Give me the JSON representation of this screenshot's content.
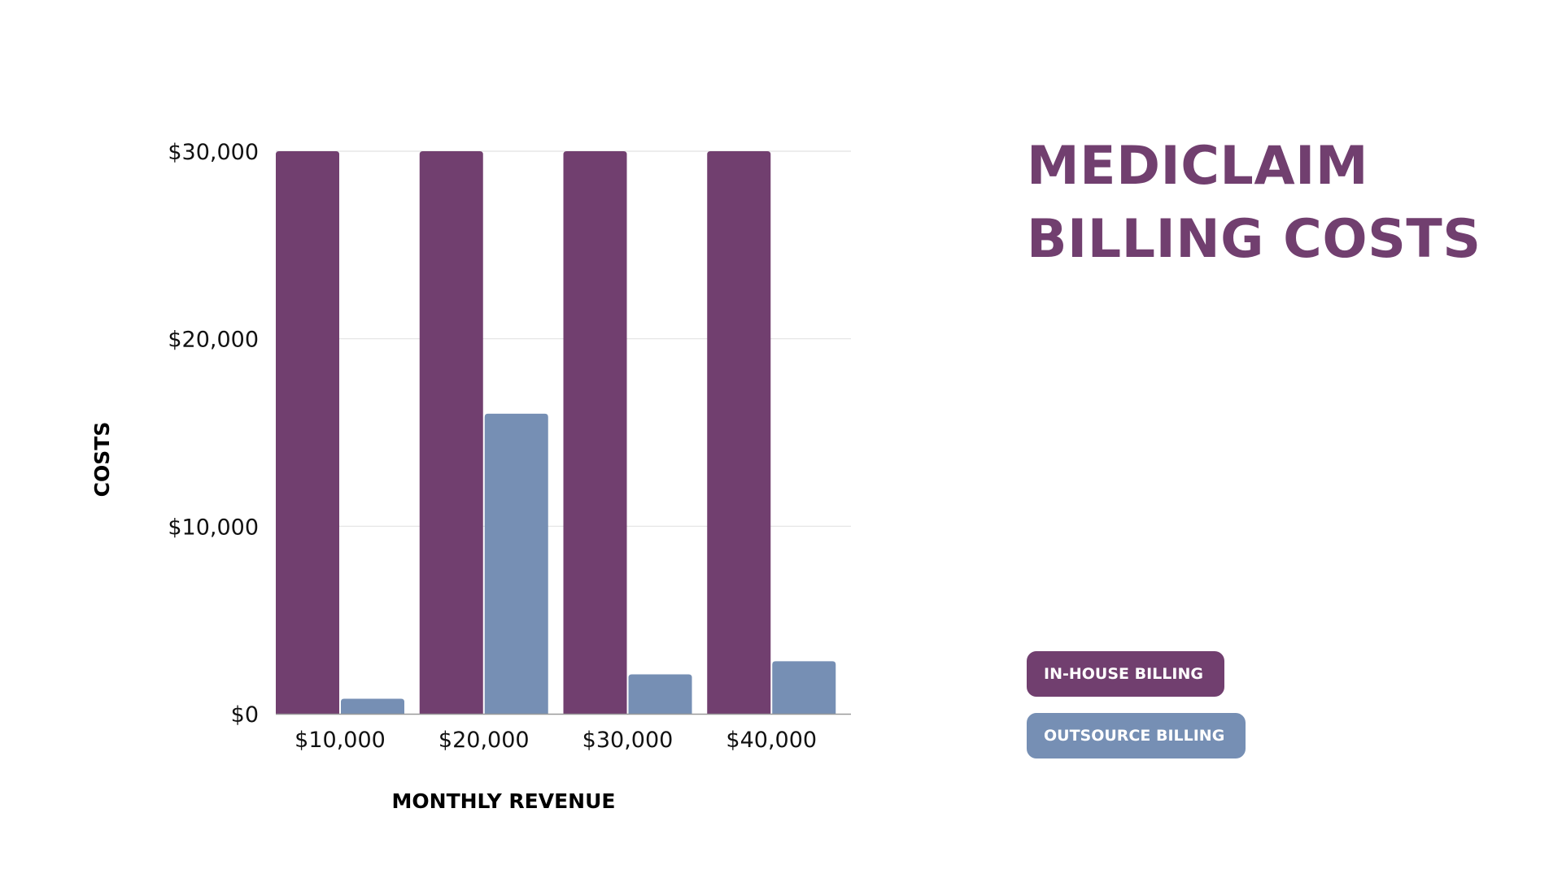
{
  "title": {
    "line1": "MEDICLAIM",
    "line2": "BILLING COSTS"
  },
  "colors": {
    "title": "#713F6F",
    "in_house": "#713F6F",
    "outsource": "#768FB4",
    "grid": "#E2E2E2",
    "axis": "#9A9A9A"
  },
  "legend": [
    {
      "label": "IN-HOUSE BILLING",
      "color": "#713F6F"
    },
    {
      "label": "OUTSOURCE BILLING",
      "color": "#768FB4"
    }
  ],
  "chart_data": {
    "type": "bar",
    "xlabel": "MONTHLY REVENUE",
    "ylabel": "COSTS",
    "categories": [
      "$10,000",
      "$20,000",
      "$30,000",
      "$40,000"
    ],
    "series": [
      {
        "name": "IN-HOUSE BILLING",
        "color": "#713F6F",
        "values": [
          30000,
          30000,
          30000,
          30000
        ]
      },
      {
        "name": "OUTSOURCE BILLING",
        "color": "#768FB4",
        "values": [
          800,
          16000,
          2100,
          2800
        ]
      }
    ],
    "ylim": [
      0,
      30000
    ],
    "yticks": [
      {
        "value": 0,
        "label": "$0"
      },
      {
        "value": 10000,
        "label": "$10,000"
      },
      {
        "value": 20000,
        "label": "$20,000"
      },
      {
        "value": 30000,
        "label": "$30,000"
      }
    ],
    "grid": true,
    "legend_position": "right"
  }
}
